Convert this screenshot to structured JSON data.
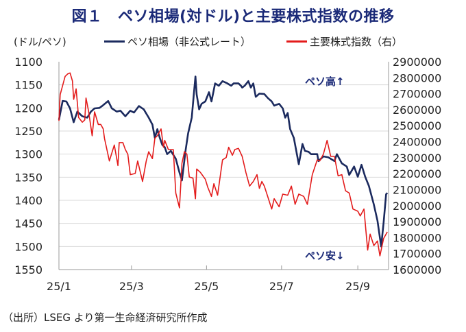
{
  "title": "図１　ペソ相場(対ドル)と主要株式指数の推移",
  "unit_label": "(ドル/ペソ)",
  "annotations": {
    "peso_up": "ペソ高↑",
    "peso_down": "ペソ安↓"
  },
  "source": "（出所）LSEG より第一生命経済研究所作成",
  "colors": {
    "peso": "#1b2a5e",
    "stock": "#e31b1b",
    "grid": "#d9d9d9",
    "title": "#1b2a78"
  },
  "chart_data": {
    "type": "line",
    "title": "図１　ペソ相場(対ドル)と主要株式指数の推移",
    "x_unit": "days since 2025-01-01",
    "x_range": [
      0,
      268
    ],
    "x_ticks": [
      {
        "label": "25/1",
        "day": 0
      },
      {
        "label": "25/3",
        "day": 59
      },
      {
        "label": "25/5",
        "day": 120
      },
      {
        "label": "25/7",
        "day": 181
      },
      {
        "label": "25/9",
        "day": 243
      }
    ],
    "y_left": {
      "label": "(ドル/ペソ)",
      "range": [
        1100,
        1550
      ],
      "inverted": true,
      "ticks": [
        1100,
        1150,
        1200,
        1250,
        1300,
        1350,
        1400,
        1450,
        1500,
        1550
      ]
    },
    "y_right": {
      "label": "右",
      "range": [
        1600000,
        2900000
      ],
      "ticks": [
        2900000,
        2800000,
        2700000,
        2600000,
        2500000,
        2400000,
        2300000,
        2200000,
        2100000,
        2000000,
        1900000,
        1800000,
        1700000,
        1600000
      ]
    },
    "grid": true,
    "legend_placement": "top",
    "series": [
      {
        "name": "ペソ相場（非公式レート）",
        "axis": "left",
        "color": "#1b2a5e",
        "x": [
          0,
          3,
          6,
          9,
          12,
          15,
          19,
          23,
          26,
          29,
          33,
          36,
          40,
          43,
          47,
          50,
          54,
          58,
          61,
          65,
          69,
          73,
          76,
          78,
          80,
          82,
          84,
          86,
          88,
          91,
          95,
          98,
          100,
          103,
          105,
          108,
          110,
          111,
          112,
          114,
          116,
          119,
          122,
          124,
          127,
          130,
          133,
          137,
          140,
          142,
          146,
          148,
          149,
          151,
          154,
          156,
          158,
          160,
          163,
          167,
          170,
          173,
          175,
          179,
          182,
          184,
          186,
          188,
          191,
          195,
          198,
          200,
          203,
          205,
          210,
          211,
          215,
          219,
          224,
          226,
          230,
          234,
          236,
          240,
          243,
          246,
          249,
          252,
          256,
          259,
          262,
          264,
          266,
          267
        ],
        "y": [
          1226,
          1185,
          1186,
          1201,
          1231,
          1208,
          1218,
          1221,
          1208,
          1201,
          1200,
          1194,
          1185,
          1201,
          1208,
          1206,
          1218,
          1206,
          1210,
          1196,
          1203,
          1221,
          1236,
          1265,
          1246,
          1265,
          1280,
          1285,
          1300,
          1293,
          1310,
          1340,
          1357,
          1291,
          1255,
          1221,
          1161,
          1132,
          1171,
          1203,
          1191,
          1186,
          1166,
          1186,
          1147,
          1152,
          1142,
          1147,
          1152,
          1147,
          1147,
          1152,
          1156,
          1152,
          1142,
          1156,
          1147,
          1176,
          1169,
          1170,
          1179,
          1186,
          1195,
          1191,
          1201,
          1221,
          1211,
          1246,
          1265,
          1322,
          1278,
          1293,
          1295,
          1300,
          1300,
          1315,
          1305,
          1307,
          1315,
          1300,
          1320,
          1327,
          1345,
          1327,
          1349,
          1323,
          1349,
          1369,
          1409,
          1444,
          1500,
          1448,
          1387,
          1384
        ]
      },
      {
        "name": "主要株式指数（右）",
        "axis": "right",
        "color": "#e31b1b",
        "x": [
          0,
          1,
          3,
          5,
          7,
          9,
          11,
          12,
          14,
          16,
          19,
          21,
          22,
          24,
          27,
          29,
          32,
          34,
          36,
          37,
          41,
          45,
          48,
          49,
          52,
          54,
          56,
          58,
          62,
          64,
          68,
          71,
          73,
          74,
          76,
          78,
          80,
          83,
          85,
          86,
          89,
          93,
          95,
          98,
          100,
          102,
          104,
          106,
          109,
          111,
          112,
          115,
          119,
          121,
          124,
          126,
          129,
          133,
          136,
          138,
          141,
          143,
          146,
          149,
          152,
          155,
          158,
          161,
          163,
          165,
          167,
          170,
          173,
          175,
          179,
          182,
          186,
          189,
          192,
          195,
          199,
          202,
          206,
          210,
          212,
          215,
          218,
          221,
          224,
          227,
          230,
          233,
          236,
          239,
          243,
          245,
          248,
          251,
          253,
          256,
          259,
          261,
          264,
          267
        ],
        "y": [
          2530000,
          2694000,
          2751000,
          2808000,
          2823000,
          2830000,
          2780000,
          2665000,
          2730000,
          2551000,
          2522000,
          2536000,
          2673000,
          2594000,
          2437000,
          2587000,
          2508000,
          2508000,
          2480000,
          2422000,
          2279000,
          2379000,
          2251000,
          2394000,
          2394000,
          2351000,
          2322000,
          2194000,
          2201000,
          2279000,
          2151000,
          2279000,
          2337000,
          2322000,
          2294000,
          2422000,
          2437000,
          2480000,
          2365000,
          2408000,
          2351000,
          2351000,
          2079000,
          1986000,
          2265000,
          2337000,
          2322000,
          2179000,
          2172000,
          2043000,
          2229000,
          2208000,
          2165000,
          2115000,
          2058000,
          2137000,
          2065000,
          2286000,
          2301000,
          2365000,
          2315000,
          2351000,
          2358000,
          2308000,
          2208000,
          2122000,
          2151000,
          2194000,
          2108000,
          2151000,
          2122000,
          2051000,
          1979000,
          2043000,
          1993000,
          2072000,
          2065000,
          2122000,
          2008000,
          2072000,
          2058000,
          2008000,
          2194000,
          2286000,
          2279000,
          2322000,
          2408000,
          2308000,
          2308000,
          2186000,
          2194000,
          2093000,
          2079000,
          1979000,
          1965000,
          1936000,
          1979000,
          1722000,
          1822000,
          1750000,
          1779000,
          1686000,
          1795000,
          1836000
        ]
      }
    ]
  }
}
